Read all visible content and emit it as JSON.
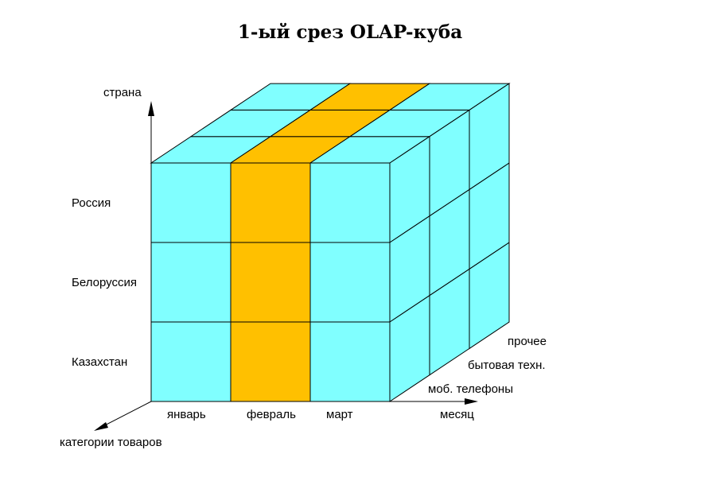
{
  "title": "1-ый срез OLAP-куба",
  "axes": {
    "vertical_label": "страна",
    "horizontal_label": "месяц",
    "depth_label": "категории товаров"
  },
  "countries": [
    "Россия",
    "Белоруссия",
    "Казахстан"
  ],
  "months": [
    "январь",
    "февраль",
    "март"
  ],
  "categories": [
    "моб. телефоны",
    "бытовая техн.",
    "прочее"
  ],
  "highlighted_month": "февраль",
  "colors": {
    "cell": "#80FFFF",
    "slice": "#FFC000",
    "outline": "#000000"
  }
}
